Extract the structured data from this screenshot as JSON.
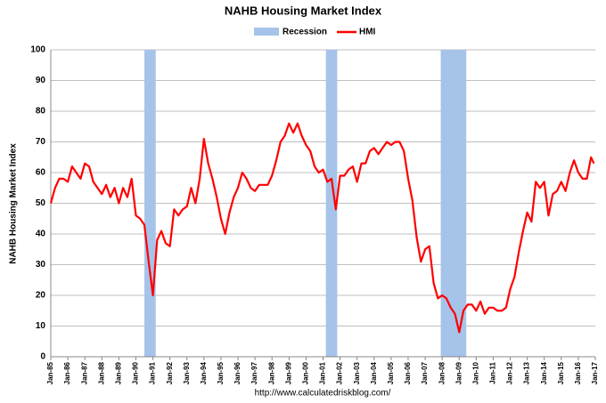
{
  "chart_data": {
    "type": "line",
    "title": "NAHB Housing Market Index",
    "y_label": "NAHB Housing Market Index",
    "source": "http://www.calculatedriskblog.com/",
    "bands": {
      "name": "Recession",
      "color": "#a6c3ea",
      "ranges": [
        [
          "Jul-90",
          "Mar-91"
        ],
        [
          "Mar-01",
          "Nov-01"
        ],
        [
          "Dec-07",
          "Jun-09"
        ]
      ]
    },
    "x": [
      "Jan-85",
      "Apr-85",
      "Jul-85",
      "Oct-85",
      "Jan-86",
      "Apr-86",
      "Jul-86",
      "Oct-86",
      "Jan-87",
      "Apr-87",
      "Jul-87",
      "Oct-87",
      "Jan-88",
      "Apr-88",
      "Jul-88",
      "Oct-88",
      "Jan-89",
      "Apr-89",
      "Jul-89",
      "Oct-89",
      "Jan-90",
      "Apr-90",
      "Jul-90",
      "Oct-90",
      "Jan-91",
      "Apr-91",
      "Jul-91",
      "Oct-91",
      "Jan-92",
      "Apr-92",
      "Jul-92",
      "Oct-92",
      "Jan-93",
      "Apr-93",
      "Jul-93",
      "Oct-93",
      "Jan-94",
      "Apr-94",
      "Jul-94",
      "Oct-94",
      "Jan-95",
      "Apr-95",
      "Jul-95",
      "Oct-95",
      "Jan-96",
      "Apr-96",
      "Jul-96",
      "Oct-96",
      "Jan-97",
      "Apr-97",
      "Jul-97",
      "Oct-97",
      "Jan-98",
      "Apr-98",
      "Jul-98",
      "Oct-98",
      "Jan-99",
      "Apr-99",
      "Jul-99",
      "Oct-99",
      "Jan-00",
      "Apr-00",
      "Jul-00",
      "Oct-00",
      "Jan-01",
      "Apr-01",
      "Jul-01",
      "Oct-01",
      "Jan-02",
      "Apr-02",
      "Jul-02",
      "Oct-02",
      "Jan-03",
      "Apr-03",
      "Jul-03",
      "Oct-03",
      "Jan-04",
      "Apr-04",
      "Jul-04",
      "Oct-04",
      "Jan-05",
      "Apr-05",
      "Jul-05",
      "Oct-05",
      "Jan-06",
      "Apr-06",
      "Jul-06",
      "Oct-06",
      "Jan-07",
      "Apr-07",
      "Jul-07",
      "Oct-07",
      "Jan-08",
      "Apr-08",
      "Jul-08",
      "Oct-08",
      "Jan-09",
      "Apr-09",
      "Jul-09",
      "Oct-09",
      "Jan-10",
      "Apr-10",
      "Jul-10",
      "Oct-10",
      "Jan-11",
      "Apr-11",
      "Jul-11",
      "Oct-11",
      "Jan-12",
      "Apr-12",
      "Jul-12",
      "Oct-12",
      "Jan-13",
      "Apr-13",
      "Jul-13",
      "Oct-13",
      "Jan-14",
      "Apr-14",
      "Jul-14",
      "Oct-14",
      "Jan-15",
      "Apr-15",
      "Jul-15",
      "Oct-15",
      "Jan-16",
      "Apr-16",
      "Jul-16",
      "Oct-16",
      "Dec-16"
    ],
    "series": [
      {
        "name": "HMI",
        "color": "#ff0000",
        "values": [
          50,
          55,
          58,
          58,
          57,
          62,
          60,
          58,
          63,
          62,
          57,
          55,
          53,
          56,
          52,
          55,
          50,
          55,
          52,
          58,
          46,
          45,
          43,
          31,
          20,
          38,
          41,
          37,
          36,
          48,
          46,
          48,
          49,
          55,
          50,
          58,
          71,
          63,
          58,
          52,
          45,
          40,
          47,
          52,
          55,
          60,
          58,
          55,
          54,
          56,
          56,
          56,
          59,
          64,
          70,
          72,
          76,
          73,
          76,
          72,
          69,
          67,
          62,
          60,
          61,
          57,
          58,
          48,
          59,
          59,
          61,
          62,
          57,
          63,
          63,
          67,
          68,
          66,
          68,
          70,
          69,
          70,
          70,
          67,
          58,
          51,
          39,
          31,
          35,
          36,
          24,
          19,
          20,
          19,
          16,
          14,
          8,
          15,
          17,
          17,
          15,
          18,
          14,
          16,
          16,
          15,
          15,
          16,
          22,
          26,
          34,
          41,
          47,
          44,
          57,
          55,
          57,
          46,
          53,
          54,
          57,
          54,
          60,
          64,
          60,
          58,
          58,
          65,
          63
        ]
      }
    ],
    "xlim": [
      "Jan-85",
      "Jan-17"
    ],
    "xticks": [
      "Jan-85",
      "Jan-86",
      "Jan-87",
      "Jan-88",
      "Jan-89",
      "Jan-90",
      "Jan-91",
      "Jan-92",
      "Jan-93",
      "Jan-94",
      "Jan-95",
      "Jan-96",
      "Jan-97",
      "Jan-98",
      "Jan-99",
      "Jan-00",
      "Jan-01",
      "Jan-02",
      "Jan-03",
      "Jan-04",
      "Jan-05",
      "Jan-06",
      "Jan-07",
      "Jan-08",
      "Jan-09",
      "Jan-10",
      "Jan-11",
      "Jan-12",
      "Jan-13",
      "Jan-14",
      "Jan-15",
      "Jan-16",
      "Jan-17"
    ],
    "ylim": [
      0,
      100
    ],
    "yticks": [
      0,
      10,
      20,
      30,
      40,
      50,
      60,
      70,
      80,
      90,
      100
    ],
    "grid": true
  }
}
